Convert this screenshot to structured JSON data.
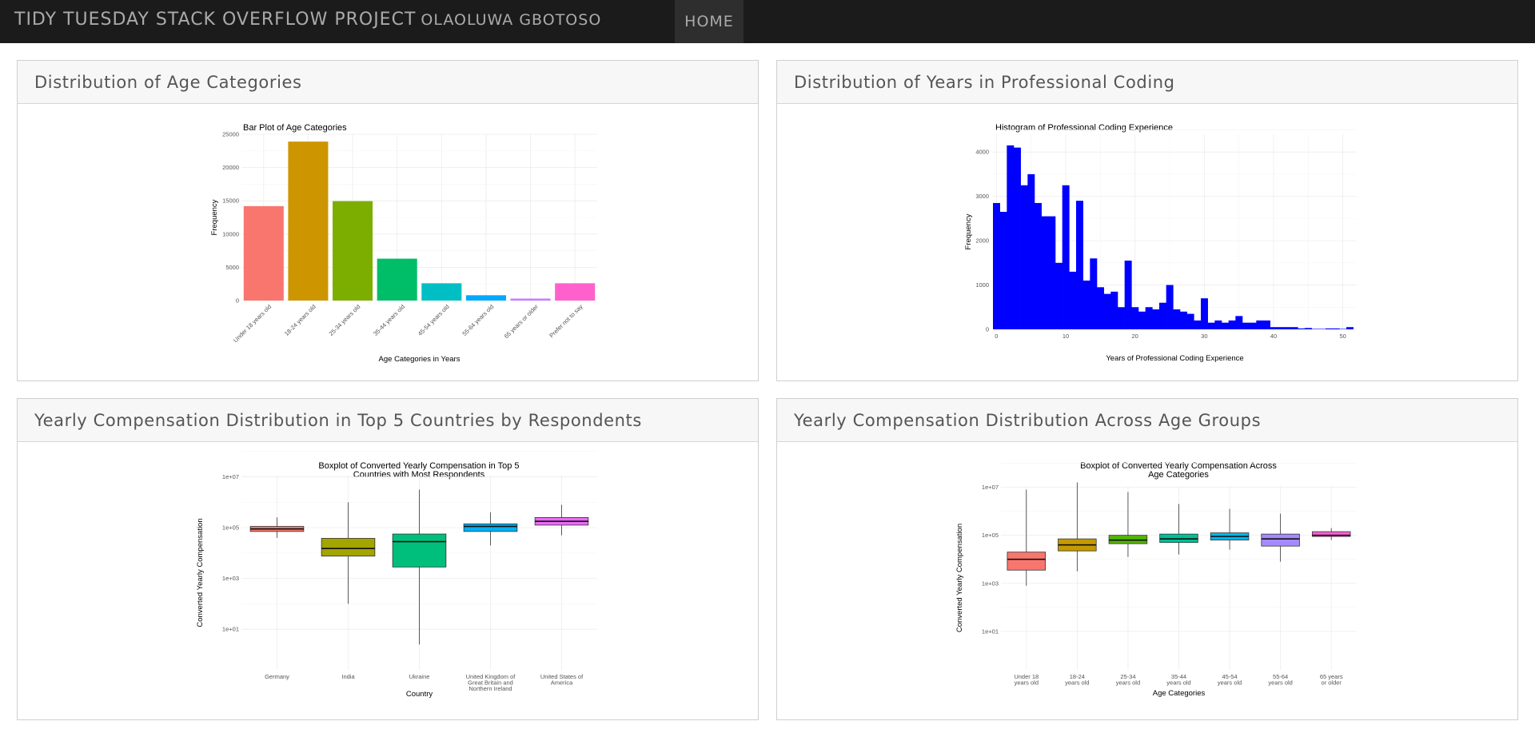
{
  "navbar": {
    "title": "TIDY TUESDAY STACK OVERFLOW PROJECT",
    "author": "OLAOLUWA GBOTOSO",
    "home_label": "HOME"
  },
  "cards": [
    {
      "title": "Distribution of Age Categories"
    },
    {
      "title": "Distribution of Years in Professional Coding"
    },
    {
      "title": "Yearly Compensation Distribution in Top 5 Countries by Respondents"
    },
    {
      "title": "Yearly Compensation Distribution Across Age Groups"
    }
  ],
  "chart_data": [
    {
      "type": "bar",
      "title": "Bar Plot of Age Categories",
      "xlabel": "Age Categories in Years",
      "ylabel": "Frequency",
      "ylim": [
        0,
        25000
      ],
      "yticks": [
        0,
        5000,
        10000,
        15000,
        20000,
        25000
      ],
      "categories": [
        "Under 18 years old",
        "18-24 years old",
        "25-34 years old",
        "35-44 years old",
        "45-54 years old",
        "55-64 years old",
        "65 years or older",
        "Prefer not to say"
      ],
      "values": [
        14200,
        23900,
        14950,
        6300,
        2600,
        800,
        300,
        2600
      ],
      "colors": [
        "#f8766d",
        "#cd9600",
        "#7cae00",
        "#00be67",
        "#00bfc4",
        "#00a9ff",
        "#c77cff",
        "#ff61cc"
      ],
      "grid": true,
      "legend": "none"
    },
    {
      "type": "bar",
      "title": "Histogram of Professional Coding Experience",
      "xlabel": "Years of Professional Coding Experience",
      "ylabel": "Frequency",
      "ylim": [
        0,
        4400
      ],
      "xlim": [
        -0.5,
        52
      ],
      "xticks": [
        0,
        10,
        20,
        30,
        40,
        50
      ],
      "yticks": [
        0,
        1000,
        2000,
        3000,
        4000
      ],
      "x": [
        0,
        1,
        2,
        3,
        4,
        5,
        6,
        7,
        8,
        9,
        10,
        11,
        12,
        13,
        14,
        15,
        16,
        17,
        18,
        19,
        20,
        21,
        22,
        23,
        24,
        25,
        26,
        27,
        28,
        29,
        30,
        31,
        32,
        33,
        34,
        35,
        36,
        37,
        38,
        39,
        40,
        41,
        42,
        43,
        44,
        45,
        46,
        47,
        48,
        49,
        50,
        51
      ],
      "values": [
        2850,
        2650,
        4150,
        4100,
        3250,
        3500,
        2850,
        2550,
        2550,
        1500,
        3250,
        1300,
        2900,
        1100,
        1600,
        950,
        800,
        850,
        500,
        1550,
        500,
        400,
        500,
        450,
        600,
        1000,
        450,
        400,
        350,
        200,
        700,
        150,
        200,
        150,
        200,
        300,
        150,
        150,
        200,
        200,
        50,
        50,
        50,
        50,
        20,
        30,
        10,
        10,
        20,
        20,
        10,
        50
      ],
      "color": "#0000ff",
      "grid": true
    },
    {
      "type": "boxplot",
      "title": "Boxplot of Converted Yearly Compensation in Top 5 Countries with Most Respondents",
      "xlabel": "Country",
      "ylabel": "Converted Yearly Compensation",
      "y_scale": "log10",
      "ylim_log10": [
        -0.6,
        7.05
      ],
      "yticks": [
        "1e+01",
        "1e+03",
        "1e+05",
        "1e+07"
      ],
      "categories": [
        "Germany",
        "India",
        "Ukraine",
        "United Kingdom of Great Britain and Northern Ireland",
        "United States of America"
      ],
      "boxes": [
        {
          "q1_log10": 4.85,
          "median_log10": 4.95,
          "q3_log10": 5.05,
          "whisker_low_log10": 4.6,
          "whisker_high_log10": 5.4
        },
        {
          "q1_log10": 3.88,
          "median_log10": 4.18,
          "q3_log10": 4.58,
          "whisker_low_log10": 2.0,
          "whisker_high_log10": 6.0
        },
        {
          "q1_log10": 3.45,
          "median_log10": 4.45,
          "q3_log10": 4.75,
          "whisker_low_log10": 0.4,
          "whisker_high_log10": 6.5
        },
        {
          "q1_log10": 4.85,
          "median_log10": 5.05,
          "q3_log10": 5.15,
          "whisker_low_log10": 4.3,
          "whisker_high_log10": 5.6
        },
        {
          "q1_log10": 5.1,
          "median_log10": 5.25,
          "q3_log10": 5.4,
          "whisker_low_log10": 4.7,
          "whisker_high_log10": 5.9
        }
      ],
      "colors": [
        "#f8766d",
        "#a3a500",
        "#00bf7d",
        "#00b0f6",
        "#e76bf3"
      ]
    },
    {
      "type": "boxplot",
      "title": "Boxplot of Converted Yearly Compensation Across Age Categories",
      "xlabel": "Age Categories",
      "ylabel": "Converted Yearly Compensation",
      "y_scale": "log10",
      "ylim_log10": [
        -0.6,
        7.05
      ],
      "yticks": [
        "1e+01",
        "1e+03",
        "1e+05",
        "1e+07"
      ],
      "categories": [
        "Under 18 years old",
        "18-24 years old",
        "25-34 years old",
        "35-44 years old",
        "45-54 years old",
        "55-64 years old",
        "65 years or older"
      ],
      "boxes": [
        {
          "q1_log10": 3.55,
          "median_log10": 4.0,
          "q3_log10": 4.3,
          "whisker_low_log10": 2.9,
          "whisker_high_log10": 6.9
        },
        {
          "q1_log10": 4.35,
          "median_log10": 4.6,
          "q3_log10": 4.85,
          "whisker_low_log10": 3.5,
          "whisker_high_log10": 7.2
        },
        {
          "q1_log10": 4.65,
          "median_log10": 4.8,
          "q3_log10": 5.0,
          "whisker_low_log10": 4.1,
          "whisker_high_log10": 6.8
        },
        {
          "q1_log10": 4.7,
          "median_log10": 4.85,
          "q3_log10": 5.05,
          "whisker_low_log10": 4.2,
          "whisker_high_log10": 6.3
        },
        {
          "q1_log10": 4.8,
          "median_log10": 4.95,
          "q3_log10": 5.1,
          "whisker_low_log10": 4.4,
          "whisker_high_log10": 6.1
        },
        {
          "q1_log10": 4.55,
          "median_log10": 4.85,
          "q3_log10": 5.05,
          "whisker_low_log10": 3.9,
          "whisker_high_log10": 5.9
        },
        {
          "q1_log10": 4.95,
          "median_log10": 5.0,
          "q3_log10": 5.15,
          "whisker_low_log10": 4.8,
          "whisker_high_log10": 5.3
        }
      ],
      "colors": [
        "#f8766d",
        "#c49a00",
        "#53b400",
        "#00c094",
        "#00b6eb",
        "#a58aff",
        "#fb61d7"
      ]
    }
  ]
}
